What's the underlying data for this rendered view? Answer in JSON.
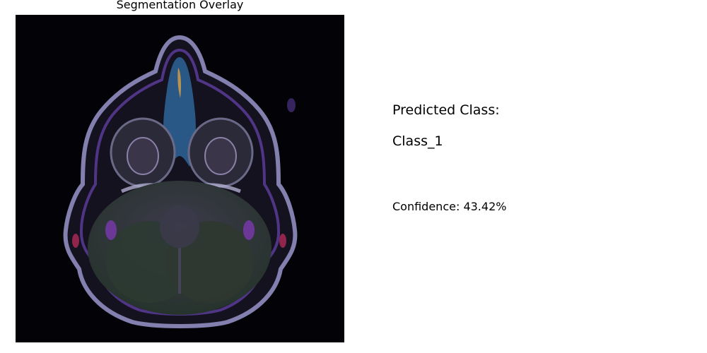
{
  "figure": {
    "title": "Segmentation Overlay"
  },
  "prediction": {
    "label": "Predicted Class:",
    "class_name": "Class_1",
    "confidence_text": "Confidence: 43.42%"
  },
  "colors": {
    "panel_background": "#020207",
    "skull_outline": "#8a86b8",
    "overlay_purple": "#5a3c9a",
    "overlay_blue": "#2f6aa0",
    "brain_tissue": "#2c3a32"
  },
  "images": {
    "scan_semantic": "axial-brain-mri-with-segmentation-overlay"
  }
}
